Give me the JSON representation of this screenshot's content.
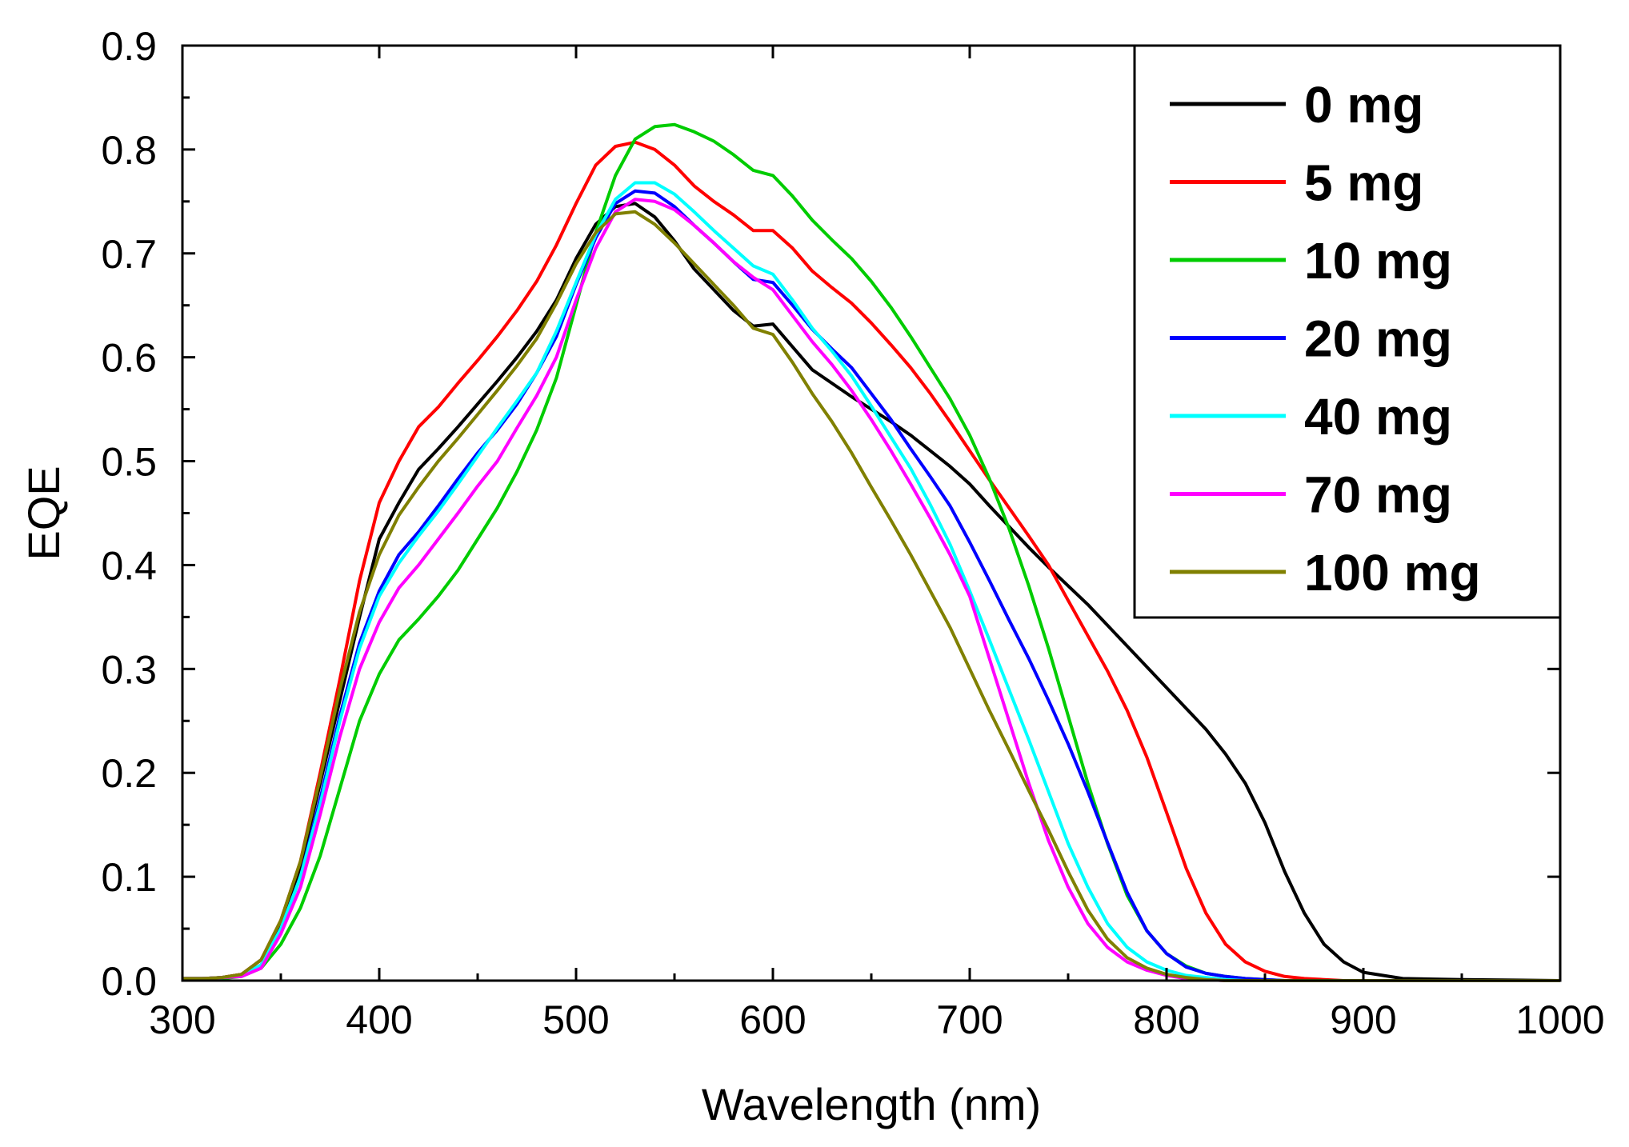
{
  "chart_data": {
    "type": "line",
    "xlabel": "Wavelength (nm)",
    "ylabel": "EQE",
    "xlim": [
      300,
      1000
    ],
    "ylim": [
      0,
      0.9
    ],
    "xticks": [
      "300",
      "400",
      "500",
      "600",
      "700",
      "800",
      "900",
      "1000"
    ],
    "yticks": [
      "0.0",
      "0.1",
      "0.2",
      "0.3",
      "0.4",
      "0.5",
      "0.6",
      "0.7",
      "0.8",
      "0.9"
    ],
    "grid": false,
    "legend_position": "top-right",
    "x": [
      300,
      310,
      320,
      330,
      340,
      350,
      360,
      370,
      380,
      390,
      400,
      410,
      420,
      430,
      440,
      450,
      460,
      470,
      480,
      490,
      500,
      510,
      520,
      530,
      540,
      550,
      560,
      570,
      580,
      590,
      600,
      610,
      620,
      630,
      640,
      650,
      660,
      670,
      680,
      690,
      700,
      710,
      720,
      730,
      740,
      750,
      760,
      770,
      780,
      790,
      800,
      810,
      820,
      830,
      840,
      850,
      860,
      870,
      880,
      890,
      900,
      920,
      950,
      1000
    ],
    "series": [
      {
        "name": "0 mg",
        "color": "#000000",
        "values": [
          0.002,
          0.002,
          0.003,
          0.006,
          0.02,
          0.055,
          0.11,
          0.19,
          0.27,
          0.35,
          0.425,
          0.46,
          0.492,
          0.512,
          0.533,
          0.555,
          0.577,
          0.6,
          0.625,
          0.655,
          0.695,
          0.728,
          0.745,
          0.748,
          0.735,
          0.712,
          0.685,
          0.665,
          0.645,
          0.63,
          0.632,
          0.61,
          0.588,
          0.575,
          0.562,
          0.55,
          0.538,
          0.525,
          0.51,
          0.495,
          0.478,
          0.457,
          0.437,
          0.417,
          0.398,
          0.38,
          0.362,
          0.342,
          0.322,
          0.302,
          0.282,
          0.262,
          0.242,
          0.218,
          0.19,
          0.152,
          0.105,
          0.065,
          0.035,
          0.018,
          0.008,
          0.002,
          0.001,
          0.0
        ]
      },
      {
        "name": "5 mg",
        "color": "#ff0000",
        "values": [
          0.002,
          0.002,
          0.003,
          0.006,
          0.02,
          0.058,
          0.115,
          0.2,
          0.29,
          0.385,
          0.46,
          0.5,
          0.533,
          0.552,
          0.575,
          0.597,
          0.62,
          0.645,
          0.673,
          0.708,
          0.748,
          0.785,
          0.803,
          0.807,
          0.8,
          0.785,
          0.765,
          0.75,
          0.737,
          0.722,
          0.722,
          0.705,
          0.683,
          0.667,
          0.652,
          0.633,
          0.612,
          0.59,
          0.565,
          0.538,
          0.51,
          0.482,
          0.455,
          0.428,
          0.4,
          0.366,
          0.332,
          0.298,
          0.26,
          0.215,
          0.162,
          0.108,
          0.065,
          0.035,
          0.018,
          0.009,
          0.004,
          0.002,
          0.001,
          0.0,
          0.0,
          0.0,
          0.0,
          0.0
        ]
      },
      {
        "name": "10 mg",
        "color": "#00cc00",
        "values": [
          0.001,
          0.001,
          0.002,
          0.004,
          0.012,
          0.035,
          0.07,
          0.12,
          0.185,
          0.25,
          0.295,
          0.328,
          0.348,
          0.37,
          0.395,
          0.425,
          0.455,
          0.49,
          0.53,
          0.58,
          0.65,
          0.72,
          0.775,
          0.81,
          0.822,
          0.824,
          0.817,
          0.808,
          0.795,
          0.78,
          0.775,
          0.755,
          0.732,
          0.713,
          0.695,
          0.673,
          0.648,
          0.62,
          0.59,
          0.56,
          0.525,
          0.483,
          0.435,
          0.38,
          0.32,
          0.255,
          0.19,
          0.132,
          0.082,
          0.048,
          0.026,
          0.014,
          0.007,
          0.004,
          0.002,
          0.001,
          0.0,
          0.0,
          0.0,
          0.0,
          0.0,
          0.0,
          0.0,
          0.0
        ]
      },
      {
        "name": "20 mg",
        "color": "#0000ff",
        "values": [
          0.002,
          0.002,
          0.003,
          0.005,
          0.015,
          0.05,
          0.1,
          0.175,
          0.255,
          0.325,
          0.375,
          0.41,
          0.432,
          0.457,
          0.483,
          0.508,
          0.53,
          0.555,
          0.585,
          0.62,
          0.67,
          0.715,
          0.748,
          0.76,
          0.758,
          0.745,
          0.727,
          0.71,
          0.692,
          0.675,
          0.672,
          0.65,
          0.627,
          0.608,
          0.59,
          0.565,
          0.54,
          0.512,
          0.485,
          0.457,
          0.422,
          0.385,
          0.347,
          0.31,
          0.27,
          0.228,
          0.182,
          0.133,
          0.085,
          0.048,
          0.026,
          0.013,
          0.007,
          0.004,
          0.002,
          0.001,
          0.0,
          0.0,
          0.0,
          0.0,
          0.0,
          0.0,
          0.0,
          0.0
        ]
      },
      {
        "name": "40 mg",
        "color": "#00ffff",
        "values": [
          0.002,
          0.002,
          0.003,
          0.005,
          0.015,
          0.05,
          0.1,
          0.17,
          0.25,
          0.32,
          0.37,
          0.402,
          0.428,
          0.452,
          0.478,
          0.505,
          0.532,
          0.558,
          0.585,
          0.625,
          0.672,
          0.718,
          0.752,
          0.768,
          0.768,
          0.757,
          0.74,
          0.722,
          0.705,
          0.688,
          0.68,
          0.655,
          0.628,
          0.606,
          0.582,
          0.553,
          0.523,
          0.493,
          0.458,
          0.42,
          0.375,
          0.328,
          0.28,
          0.232,
          0.182,
          0.132,
          0.09,
          0.055,
          0.032,
          0.018,
          0.01,
          0.005,
          0.003,
          0.001,
          0.0,
          0.0,
          0.0,
          0.0,
          0.0,
          0.0,
          0.0,
          0.0,
          0.0,
          0.0
        ]
      },
      {
        "name": "70 mg",
        "color": "#ff00ff",
        "values": [
          0.002,
          0.002,
          0.003,
          0.004,
          0.012,
          0.045,
          0.09,
          0.16,
          0.235,
          0.3,
          0.345,
          0.378,
          0.4,
          0.425,
          0.45,
          0.476,
          0.5,
          0.532,
          0.563,
          0.6,
          0.655,
          0.705,
          0.74,
          0.752,
          0.75,
          0.742,
          0.727,
          0.71,
          0.692,
          0.677,
          0.665,
          0.64,
          0.615,
          0.593,
          0.568,
          0.54,
          0.51,
          0.478,
          0.445,
          0.41,
          0.37,
          0.31,
          0.25,
          0.19,
          0.135,
          0.09,
          0.055,
          0.032,
          0.018,
          0.01,
          0.005,
          0.002,
          0.001,
          0.0,
          0.0,
          0.0,
          0.0,
          0.0,
          0.0,
          0.0,
          0.0,
          0.0,
          0.0,
          0.0
        ]
      },
      {
        "name": "100 mg",
        "color": "#808000",
        "values": [
          0.002,
          0.002,
          0.003,
          0.006,
          0.02,
          0.058,
          0.115,
          0.195,
          0.28,
          0.355,
          0.41,
          0.448,
          0.475,
          0.5,
          0.522,
          0.545,
          0.568,
          0.592,
          0.618,
          0.652,
          0.69,
          0.72,
          0.738,
          0.74,
          0.728,
          0.71,
          0.69,
          0.67,
          0.65,
          0.628,
          0.622,
          0.595,
          0.565,
          0.538,
          0.508,
          0.475,
          0.443,
          0.41,
          0.375,
          0.34,
          0.3,
          0.26,
          0.222,
          0.183,
          0.145,
          0.105,
          0.068,
          0.04,
          0.022,
          0.012,
          0.006,
          0.003,
          0.001,
          0.0,
          0.0,
          0.0,
          0.0,
          0.0,
          0.0,
          0.0,
          0.0,
          0.0,
          0.0,
          0.0
        ]
      }
    ]
  }
}
